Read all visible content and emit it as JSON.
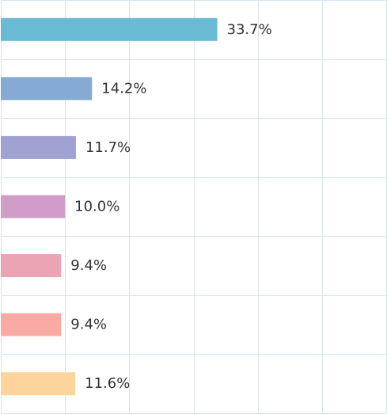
{
  "chart_data": {
    "type": "bar",
    "orientation": "horizontal",
    "title": "",
    "xlabel": "",
    "ylabel": "",
    "xlim": [
      0,
      60
    ],
    "grid": true,
    "legend": "none",
    "values": [
      33.7,
      14.2,
      11.7,
      10.0,
      9.4,
      9.4,
      11.6
    ],
    "data_labels": [
      "33.7%",
      "14.2%",
      "11.7%",
      "10.0%",
      "9.4%",
      "9.4%",
      "11.6%"
    ],
    "colors": [
      "#6bbad5",
      "#85aad4",
      "#a1a2d4",
      "#d09cc8",
      "#eba4b3",
      "#f9aaa3",
      "#fdd59c"
    ],
    "grid_color": "#d3e6ef"
  }
}
